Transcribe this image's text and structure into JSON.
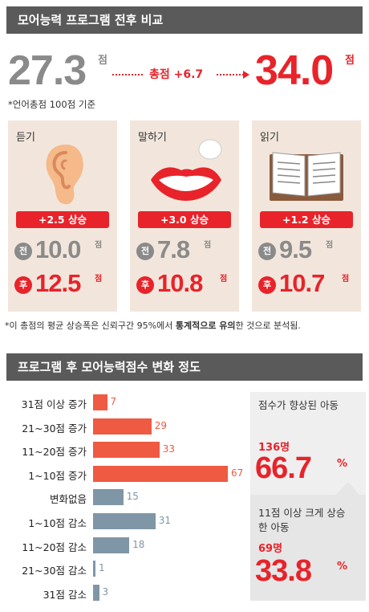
{
  "section1": {
    "title": "모어능력 프로그램 전후 비교",
    "before_total": "27.3",
    "after_total": "34.0",
    "unit": "점",
    "change_label": "총점 +6.7",
    "basis_note": "*언어총점 100점 기준",
    "cards": [
      {
        "title": "듣기",
        "icon": "ear-icon",
        "rise": "+2.5 상승",
        "before": "10.0",
        "after": "12.5"
      },
      {
        "title": "말하기",
        "icon": "lips-icon",
        "rise": "+3.0 상승",
        "before": "7.8",
        "after": "10.8"
      },
      {
        "title": "읽기",
        "icon": "book-icon",
        "rise": "+1.2 상승",
        "before": "9.5",
        "after": "10.7"
      }
    ],
    "before_label": "전",
    "after_label": "후",
    "footnote_pre": "*이 총점의 평균 상승폭은 신뢰구간 95%에서 ",
    "footnote_bold": "통계적으로 유의",
    "footnote_post": "한 것으로 분석됨."
  },
  "section2": {
    "title": "프로그램 후 모어능력점수 변화 정도",
    "improved": {
      "label": "점수가 향상된 아동",
      "count": "136명",
      "pct": "66.7",
      "pct_sign": "%"
    },
    "big_improved": {
      "label": "11점 이상 크게 상승한 아동",
      "count": "69명",
      "pct": "33.8",
      "pct_sign": "%"
    }
  },
  "colors": {
    "red": "#e8232a",
    "bar_up": "#ef5a42",
    "bar_down": "#7f96a6",
    "gray": "#8a8a8a",
    "card_bg": "#f2e6dc"
  },
  "chart_data": {
    "type": "bar",
    "orientation": "horizontal",
    "categories": [
      "31점 이상 증가",
      "21~30점 증가",
      "11~20점 증가",
      "1~10점 증가",
      "변화없음",
      "1~10점 감소",
      "11~20점 감소",
      "21~30점 감소",
      "31점 감소"
    ],
    "values": [
      7,
      29,
      33,
      67,
      15,
      31,
      18,
      1,
      3
    ],
    "groups": [
      "up",
      "up",
      "up",
      "up",
      "down",
      "down",
      "down",
      "down",
      "down"
    ],
    "xlim": [
      0,
      67
    ],
    "grid": false
  }
}
